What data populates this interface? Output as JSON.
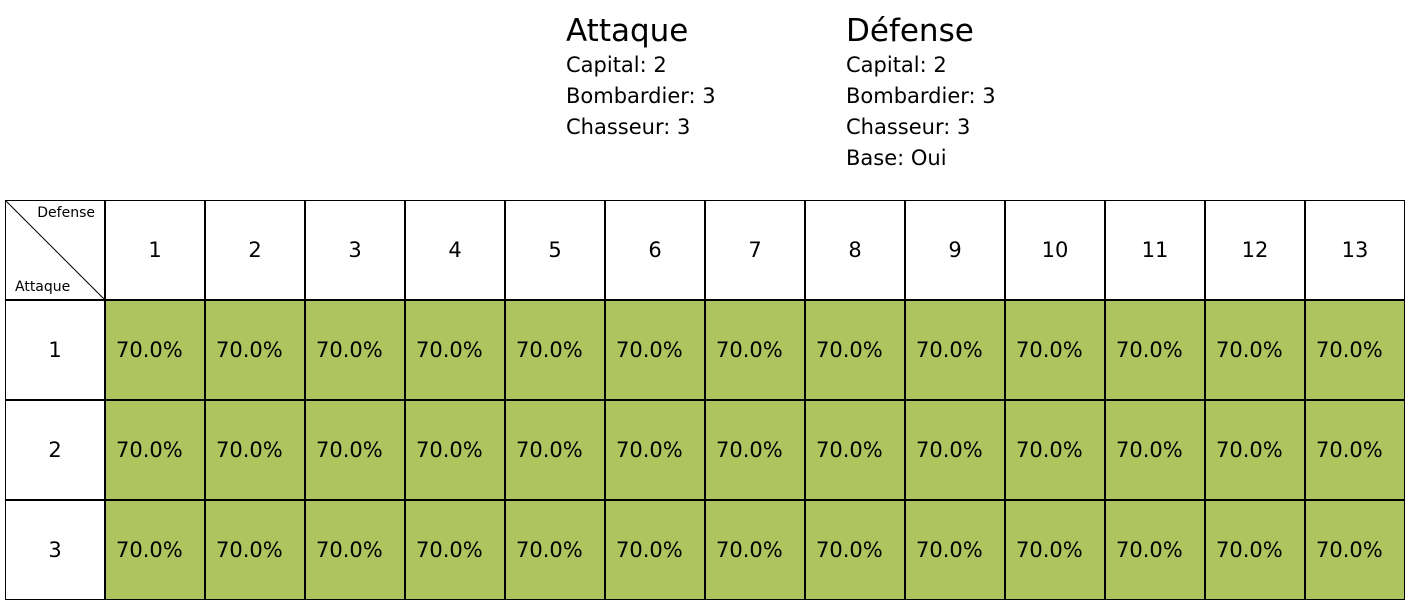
{
  "attack": {
    "title": "Attaque",
    "stats": [
      "Capital: 2",
      "Bombardier: 3",
      "Chasseur: 3"
    ]
  },
  "defense": {
    "title": "Défense",
    "stats": [
      "Capital: 2",
      "Bombardier: 3",
      "Chasseur: 3",
      "Base: Oui"
    ]
  },
  "table": {
    "corner_top": "Defense",
    "corner_bottom": "Attaque",
    "columns": [
      "1",
      "2",
      "3",
      "4",
      "5",
      "6",
      "7",
      "8",
      "9",
      "10",
      "11",
      "12",
      "13"
    ],
    "rows": [
      {
        "label": "1",
        "values": [
          "70.0%",
          "70.0%",
          "70.0%",
          "70.0%",
          "70.0%",
          "70.0%",
          "70.0%",
          "70.0%",
          "70.0%",
          "70.0%",
          "70.0%",
          "70.0%",
          "70.0%"
        ]
      },
      {
        "label": "2",
        "values": [
          "70.0%",
          "70.0%",
          "70.0%",
          "70.0%",
          "70.0%",
          "70.0%",
          "70.0%",
          "70.0%",
          "70.0%",
          "70.0%",
          "70.0%",
          "70.0%",
          "70.0%"
        ]
      },
      {
        "label": "3",
        "values": [
          "70.0%",
          "70.0%",
          "70.0%",
          "70.0%",
          "70.0%",
          "70.0%",
          "70.0%",
          "70.0%",
          "70.0%",
          "70.0%",
          "70.0%",
          "70.0%",
          "70.0%"
        ]
      }
    ],
    "cell_color": "#adc45f"
  }
}
